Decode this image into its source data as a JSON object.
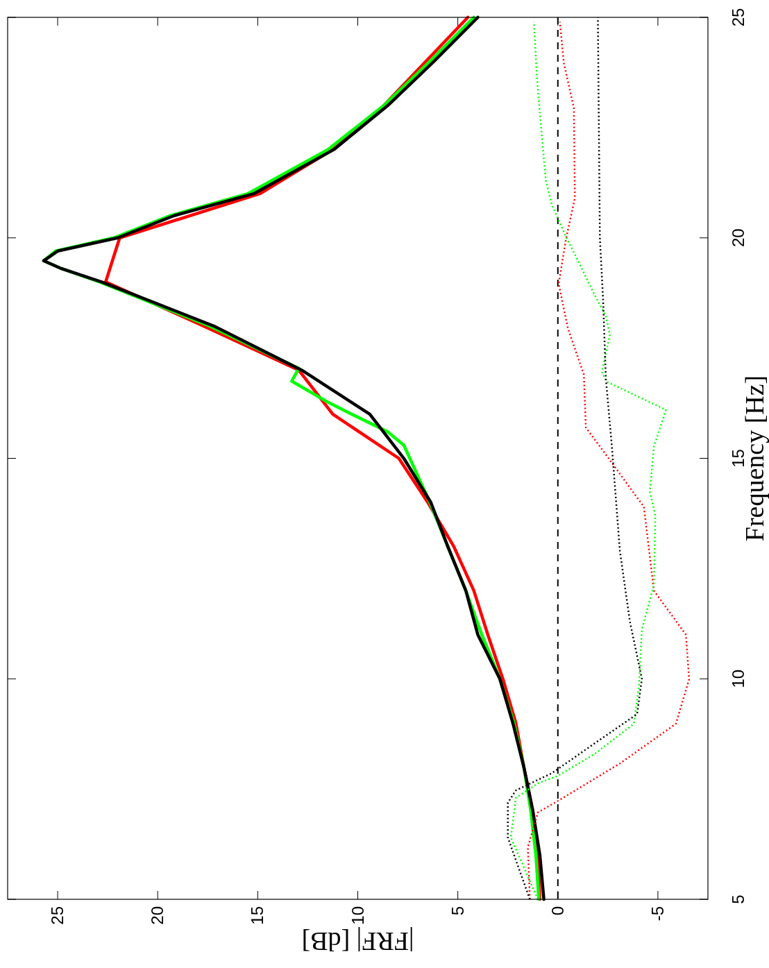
{
  "chart_data": {
    "type": "line",
    "xlabel": "|FRF|  [dB]",
    "ylabel": "Frequency  [Hz]",
    "xlim": [
      27.5,
      -7.5
    ],
    "ylim": [
      5,
      25
    ],
    "xticks": [
      25,
      20,
      15,
      10,
      5,
      0,
      -5
    ],
    "yticks": [
      5,
      10,
      15,
      20,
      25
    ],
    "series": [
      {
        "color": "#ff0000",
        "line_style": "solid",
        "values": [
          5,
          6,
          7,
          8,
          9,
          10,
          11,
          12,
          13,
          14,
          15,
          16,
          17,
          18,
          19,
          20,
          21,
          22,
          23,
          24,
          25
        ],
        "x": [
          0.9,
          1.0,
          1.25,
          1.7,
          2.1,
          2.75,
          3.5,
          4.2,
          5.2,
          6.5,
          7.95,
          11.25,
          12.95,
          17.7,
          22.6,
          21.9,
          14.9,
          11.25,
          8.7,
          6.6,
          4.5
        ]
      },
      {
        "color": "#00ff00",
        "line_style": "solid",
        "values": [
          5,
          6,
          7,
          8,
          9,
          10,
          11,
          12,
          13,
          14,
          14.5,
          15,
          15.3,
          15.6,
          16,
          16.3,
          16.75,
          17.04,
          18,
          19,
          19.3,
          19.48,
          19.7,
          20,
          20.5,
          21,
          22,
          23,
          24,
          25
        ],
        "x": [
          0.95,
          1.1,
          1.35,
          1.7,
          2.2,
          2.9,
          3.8,
          4.6,
          5.5,
          6.4,
          6.9,
          7.4,
          7.7,
          8.5,
          10.3,
          11.6,
          13.3,
          12.95,
          17.4,
          22.9,
          24.8,
          25.7,
          25.1,
          22.2,
          19.4,
          15.5,
          11.5,
          8.7,
          6.4,
          4.2
        ]
      },
      {
        "color": "#000000",
        "line_style": "solid",
        "values": [
          5,
          6,
          7,
          8,
          9,
          10,
          11,
          12,
          13,
          14,
          15,
          16,
          17,
          18,
          19,
          19.3,
          19.48,
          19.7,
          20,
          20.5,
          21,
          22,
          23,
          24,
          25
        ],
        "x": [
          0.7,
          0.9,
          1.25,
          1.7,
          2.25,
          2.9,
          4.0,
          4.6,
          5.5,
          6.35,
          7.7,
          9.4,
          12.8,
          17.2,
          22.8,
          24.8,
          25.7,
          25.0,
          22.0,
          19.2,
          15.2,
          11.2,
          8.5,
          6.2,
          4.0
        ]
      },
      {
        "color": "#ff0000",
        "line_style": "dotted",
        "values": [
          5,
          6.18,
          6.97,
          7.23,
          8.08,
          8.98,
          9.99,
          11.0,
          12.0,
          13.9,
          14.24,
          14.9,
          15.7,
          16.9,
          17.95,
          18.96,
          19.96,
          20.9,
          22.95,
          23.96,
          24.9
        ],
        "x": [
          1.4,
          1.5,
          1.0,
          0,
          -3.1,
          -5.9,
          -6.56,
          -6.4,
          -4.8,
          -4.3,
          -3.75,
          -2.7,
          -1.4,
          -1.3,
          -0.5,
          -0.04,
          -0.4,
          -0.85,
          -0.8,
          -0.3,
          -0.1
        ]
      },
      {
        "color": "#00ff00",
        "line_style": "dotted",
        "values": [
          5,
          6.4,
          7.3,
          7.63,
          7.8,
          8.3,
          8.98,
          9.88,
          11.12,
          12.13,
          13.7,
          14.24,
          15.27,
          15.4,
          16.1,
          16.74,
          16.96,
          17.8,
          18.23,
          18.74,
          19.67,
          20.03,
          20.75,
          21.3,
          22.3,
          23.6,
          24.9
        ],
        "x": [
          1.0,
          2.35,
          2.1,
          1.0,
          0,
          -1.85,
          -3.8,
          -4.06,
          -4.2,
          -4.8,
          -4.87,
          -4.6,
          -4.8,
          -4.9,
          -5.4,
          -2.43,
          -2.2,
          -2.6,
          -2.4,
          -1.8,
          -0.8,
          -0.4,
          0.3,
          0.6,
          0.8,
          1.04,
          1.2
        ]
      },
      {
        "color": "#000000",
        "line_style": "dotted",
        "values": [
          5,
          6.4,
          7.19,
          7.47,
          7.86,
          8.54,
          9.2,
          10,
          11.3,
          12.9,
          15.27,
          16.8,
          18.6,
          20,
          25
        ],
        "x": [
          1.4,
          2.5,
          2.5,
          2.1,
          0.3,
          -1.85,
          -3.96,
          -4.2,
          -3.6,
          -3.1,
          -2.7,
          -2.4,
          -2.26,
          -2.1,
          -2.0
        ]
      }
    ],
    "ref_lines": [
      {
        "axis": "x",
        "value": 0,
        "color": "#000000",
        "line_style": "dashed"
      }
    ]
  }
}
